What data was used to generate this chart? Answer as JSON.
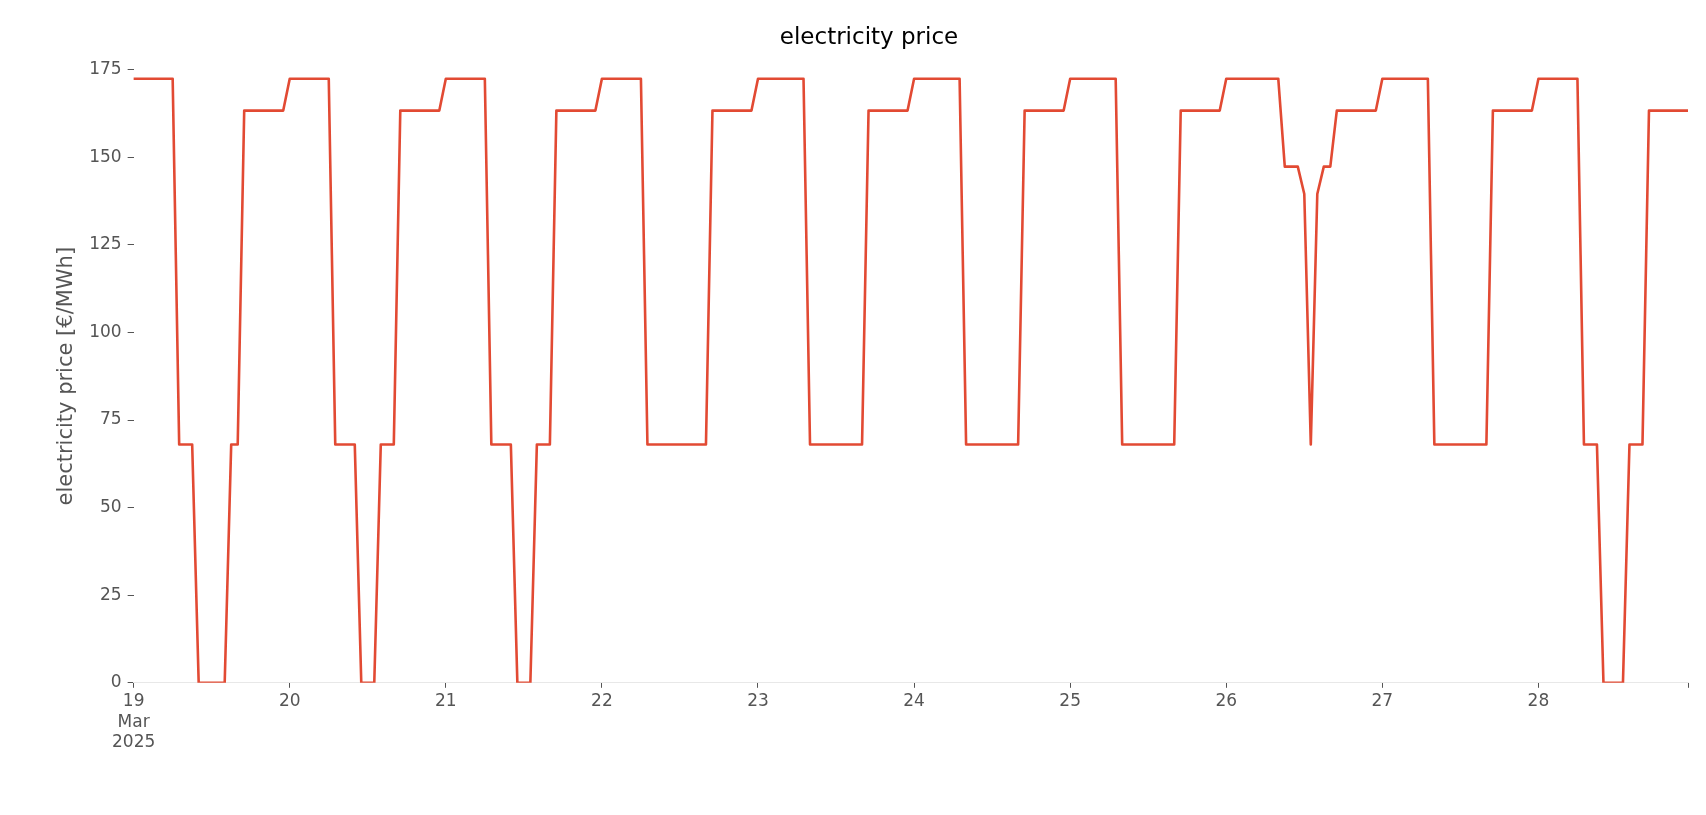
{
  "chart_data": {
    "type": "line",
    "title": "electricity price",
    "ylabel": "electricity price [€/MWh]",
    "x": [
      "2025-03-19T00:00",
      "2025-03-19T06:00",
      "2025-03-19T07:00",
      "2025-03-19T09:00",
      "2025-03-19T10:00",
      "2025-03-19T14:00",
      "2025-03-19T15:00",
      "2025-03-19T16:00",
      "2025-03-19T17:00",
      "2025-03-19T23:00",
      "2025-03-20T00:00",
      "2025-03-20T06:00",
      "2025-03-20T07:00",
      "2025-03-20T10:00",
      "2025-03-20T11:00",
      "2025-03-20T13:00",
      "2025-03-20T14:00",
      "2025-03-20T16:00",
      "2025-03-20T17:00",
      "2025-03-20T23:00",
      "2025-03-21T00:00",
      "2025-03-21T06:00",
      "2025-03-21T07:00",
      "2025-03-21T10:00",
      "2025-03-21T11:00",
      "2025-03-21T13:00",
      "2025-03-21T14:00",
      "2025-03-21T16:00",
      "2025-03-21T17:00",
      "2025-03-21T23:00",
      "2025-03-22T00:00",
      "2025-03-22T06:00",
      "2025-03-22T07:00",
      "2025-03-22T16:00",
      "2025-03-22T17:00",
      "2025-03-22T23:00",
      "2025-03-23T00:00",
      "2025-03-23T07:00",
      "2025-03-23T08:00",
      "2025-03-23T16:00",
      "2025-03-23T17:00",
      "2025-03-23T23:00",
      "2025-03-24T00:00",
      "2025-03-24T07:00",
      "2025-03-24T08:00",
      "2025-03-24T16:00",
      "2025-03-24T17:00",
      "2025-03-24T23:00",
      "2025-03-25T00:00",
      "2025-03-25T07:00",
      "2025-03-25T08:00",
      "2025-03-25T16:00",
      "2025-03-25T17:00",
      "2025-03-25T23:00",
      "2025-03-26T00:00",
      "2025-03-26T08:00",
      "2025-03-26T09:00",
      "2025-03-26T11:00",
      "2025-03-26T12:00",
      "2025-03-26T13:00",
      "2025-03-26T14:00",
      "2025-03-26T15:00",
      "2025-03-26T16:00",
      "2025-03-26T17:00",
      "2025-03-26T23:00",
      "2025-03-27T00:00",
      "2025-03-27T07:00",
      "2025-03-27T08:00",
      "2025-03-27T16:00",
      "2025-03-27T17:00",
      "2025-03-27T23:00",
      "2025-03-28T00:00",
      "2025-03-28T06:00",
      "2025-03-28T07:00",
      "2025-03-28T09:00",
      "2025-03-28T10:00",
      "2025-03-28T13:00",
      "2025-03-28T14:00",
      "2025-03-28T16:00",
      "2025-03-28T17:00",
      "2025-03-28T23:00"
    ],
    "series": [
      {
        "color": "#e24a33",
        "values": [
          172.4,
          172.4,
          68,
          68,
          0,
          0,
          68,
          68,
          163.3,
          163.3,
          172.4,
          172.4,
          68,
          68,
          0,
          0,
          68,
          68,
          163.3,
          163.3,
          172.4,
          172.4,
          68,
          68,
          0,
          0,
          68,
          68,
          163.3,
          163.3,
          172.4,
          172.4,
          68,
          68,
          163.3,
          163.3,
          172.4,
          172.4,
          68,
          68,
          163.3,
          163.3,
          172.4,
          172.4,
          68,
          68,
          163.3,
          163.3,
          172.4,
          172.4,
          68,
          68,
          163.3,
          163.3,
          172.4,
          172.4,
          147.3,
          147.3,
          139.5,
          68,
          139.5,
          147.3,
          147.3,
          163.3,
          163.3,
          172.4,
          172.4,
          68,
          68,
          163.3,
          163.3,
          172.4,
          172.4,
          68,
          68,
          0,
          0,
          68,
          68,
          163.3,
          163.3
        ]
      }
    ],
    "xlim": [
      "2025-03-19T00:00",
      "2025-03-28T23:00"
    ],
    "xticks": [
      {
        "value": "2025-03-19T00:00",
        "label": "19\nMar\n2025"
      },
      {
        "value": "2025-03-20T00:00",
        "label": "20"
      },
      {
        "value": "2025-03-21T00:00",
        "label": "21"
      },
      {
        "value": "2025-03-22T00:00",
        "label": "22"
      },
      {
        "value": "2025-03-23T00:00",
        "label": "23"
      },
      {
        "value": "2025-03-24T00:00",
        "label": "24"
      },
      {
        "value": "2025-03-25T00:00",
        "label": "25"
      },
      {
        "value": "2025-03-26T00:00",
        "label": "26"
      },
      {
        "value": "2025-03-27T00:00",
        "label": "27"
      },
      {
        "value": "2025-03-28T00:00",
        "label": "28"
      },
      {
        "value": "2025-03-28T23:00",
        "label": null
      }
    ],
    "ylim": [
      0,
      175
    ],
    "yticks": [
      0,
      25,
      50,
      75,
      100,
      125,
      150,
      175
    ],
    "legend": false,
    "marker": "none",
    "line_style": "solid"
  }
}
